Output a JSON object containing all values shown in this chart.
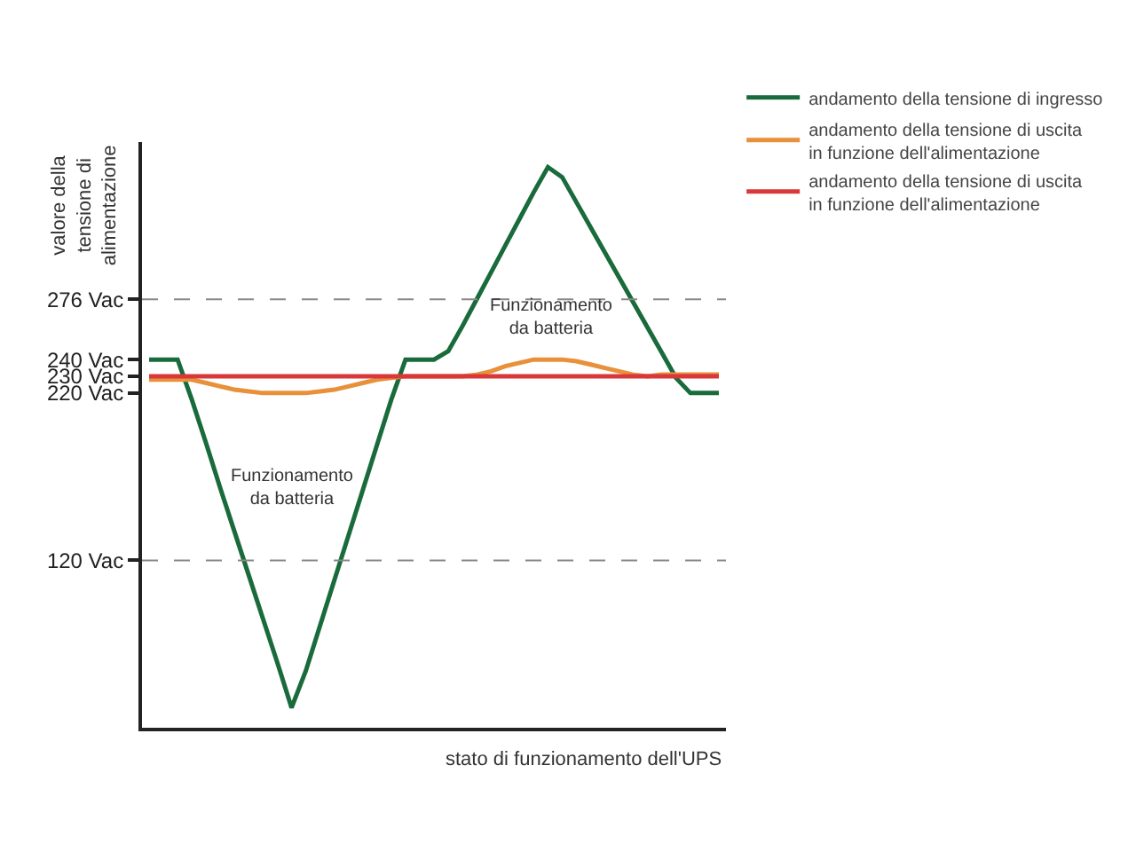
{
  "chart_data": {
    "type": "line",
    "ylabel": "valore della tensione di alimentazione",
    "xlabel": "stato di funzionamento dell'UPS",
    "categories": [
      null,
      null,
      null,
      null,
      null,
      null,
      null,
      null,
      null,
      null,
      null,
      null,
      null,
      null,
      null,
      null,
      null,
      null,
      null,
      null,
      null,
      null,
      null,
      null,
      null,
      null,
      null,
      null,
      null,
      null,
      null,
      null,
      null,
      null,
      null,
      null,
      null,
      null,
      null,
      null,
      null
    ],
    "series": [
      {
        "name": "andamento della tensione di ingresso",
        "color": "#1a6b3c",
        "values": [
          240,
          240,
          240,
          216,
          190,
          163,
          137,
          111,
          85,
          59,
          32,
          54,
          81,
          108,
          135,
          162,
          189,
          216,
          240,
          240,
          240,
          245,
          260,
          276,
          292,
          308,
          324,
          340,
          355,
          349,
          334,
          319,
          304,
          289,
          274,
          259,
          244,
          229,
          220,
          220,
          220
        ]
      },
      {
        "name": "andamento della tensione di uscita in funzione dell'alimentazione",
        "color": "#e8903a",
        "values": [
          228,
          228,
          228,
          228,
          226,
          224,
          222,
          221,
          220,
          220,
          220,
          220,
          221,
          222,
          224,
          226,
          228,
          229,
          230,
          230,
          230,
          230,
          230,
          231,
          233,
          236,
          238,
          240,
          240,
          240,
          239,
          237,
          235,
          233,
          231,
          230,
          231,
          231,
          231,
          231,
          231
        ]
      },
      {
        "name": "andamento della tensione di uscita in funzione dell'alimentazione",
        "color": "#d9383a",
        "values": [
          230,
          230,
          230,
          230,
          230,
          230,
          230,
          230,
          230,
          230,
          230,
          230,
          230,
          230,
          230,
          230,
          230,
          230,
          230,
          230,
          230,
          230,
          230,
          230,
          230,
          230,
          230,
          230,
          230,
          230,
          230,
          230,
          230,
          230,
          230,
          230,
          230,
          230,
          230,
          230,
          230
        ]
      }
    ],
    "ylim": [
      20,
      370
    ],
    "yticks": [
      {
        "value": 120,
        "label": "120 Vac"
      },
      {
        "value": 220,
        "label": "220 Vac"
      },
      {
        "value": 230,
        "label": "230 Vac"
      },
      {
        "value": 240,
        "label": "240 Vac"
      },
      {
        "value": 276,
        "label": "276 Vac"
      }
    ],
    "tick_labels": "y",
    "ref_lines": [
      {
        "axis": "y",
        "value": 276,
        "color": "#888888",
        "line_style": "dashed"
      },
      {
        "axis": "y",
        "value": 120,
        "color": "#888888",
        "line_style": "dashed"
      }
    ],
    "annotations": [
      "Funzionamento da batteria",
      "Funzionamento da batteria"
    ],
    "legend": "top right",
    "marker": "none",
    "line_style": "solid"
  }
}
